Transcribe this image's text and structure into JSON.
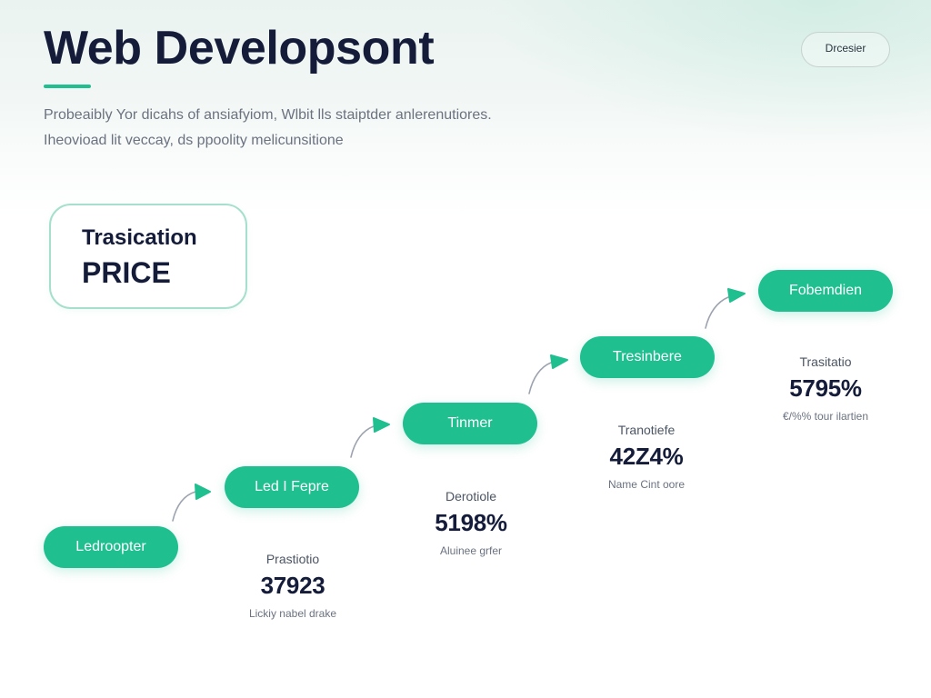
{
  "header": {
    "title": "Web Developsont",
    "subtitle": [
      "Probeaibly Yor dicahs of ansiafyiom, Wlbit lls staiptder anlerenutiores.",
      "Iheovioad lit veccay, ds ppoolity melicunsitione"
    ],
    "button_label": "Drcesier"
  },
  "price_card": {
    "label": "Trasication",
    "value": "PRICE"
  },
  "steps": [
    {
      "label": "Ledroopter"
    },
    {
      "label": "Led I Fepre"
    },
    {
      "label": "Tinmer"
    },
    {
      "label": "Tresinbere"
    },
    {
      "label": "Fobemdien"
    }
  ],
  "stats": [
    {
      "label": "Prastiotio",
      "value": "37923",
      "caption": "Lickiy nabel drake"
    },
    {
      "label": "Derotiole",
      "value": "5198%",
      "caption": "Aluinee grfer"
    },
    {
      "label": "Tranotiefe",
      "value": "42Z4%",
      "caption": "Name Cint oore"
    },
    {
      "label": "Trasitatio",
      "value": "5795%",
      "caption": "€/%% tour ilartien"
    }
  ],
  "icons": {
    "step_connector": "arrow-right-icon"
  },
  "colors": {
    "accent": "#1fbf90",
    "title": "#141c3a",
    "body_text": "#6b7280",
    "card_border": "#a6dfcd",
    "connector": "#9ca3af"
  }
}
